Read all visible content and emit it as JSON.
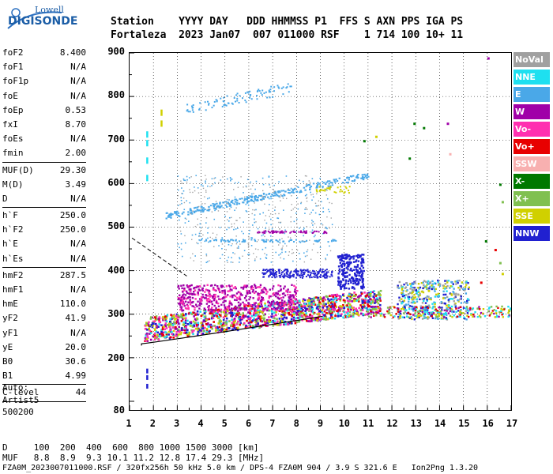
{
  "logo": {
    "top": "Lowell",
    "main": "DIGISONDE"
  },
  "header": {
    "line1": "Station    YYYY DAY   DDD HHMMSS P1  FFS S AXN PPS IGA PS",
    "line2": "Fortaleza  2023 Jan07  007 011000 RSF    1 714 100 10+ 11"
  },
  "params": [
    [
      {
        "k": "foF2",
        "v": "8.400"
      },
      {
        "k": "foF1",
        "v": "N/A"
      },
      {
        "k": "foF1p",
        "v": "N/A"
      },
      {
        "k": "foE",
        "v": "N/A"
      },
      {
        "k": "foEp",
        "v": "0.53"
      },
      {
        "k": "fxI",
        "v": "8.70"
      },
      {
        "k": "foEs",
        "v": "N/A"
      },
      {
        "k": "fmin",
        "v": "2.00"
      }
    ],
    [
      {
        "k": "MUF(D)",
        "v": "29.30"
      },
      {
        "k": "M(D)",
        "v": "3.49"
      },
      {
        "k": "D",
        "v": "N/A"
      }
    ],
    [
      {
        "k": "h`F",
        "v": "250.0"
      },
      {
        "k": "h`F2",
        "v": "250.0"
      },
      {
        "k": "h`E",
        "v": "N/A"
      },
      {
        "k": "h`Es",
        "v": "N/A"
      }
    ],
    [
      {
        "k": "hmF2",
        "v": "287.5"
      },
      {
        "k": "hmF1",
        "v": "N/A"
      },
      {
        "k": "hmE",
        "v": "110.0"
      },
      {
        "k": "yF2",
        "v": "41.9"
      },
      {
        "k": "yF1",
        "v": "N/A"
      },
      {
        "k": "yE",
        "v": "20.0"
      },
      {
        "k": "B0",
        "v": "30.6"
      },
      {
        "k": "B1",
        "v": "4.99"
      }
    ],
    [
      {
        "k": "C-level",
        "v": "44"
      }
    ]
  ],
  "auto": {
    "l1": "Auto:",
    "l2": "Artist5",
    "l3": "500200"
  },
  "legend": [
    {
      "label": "NoVal",
      "color": "#a0a0a0"
    },
    {
      "label": "NNE",
      "color": "#1ee0f0"
    },
    {
      "label": "E",
      "color": "#4aa8e8"
    },
    {
      "label": "W",
      "color": "#a000a8"
    },
    {
      "label": "Vo-",
      "color": "#ff30b0"
    },
    {
      "label": "Vo+",
      "color": "#e80000"
    },
    {
      "label": "SSW",
      "color": "#f8b0b0"
    },
    {
      "label": "X-",
      "color": "#007800"
    },
    {
      "label": "X+",
      "color": "#80c050"
    },
    {
      "label": "SSE",
      "color": "#d0d000"
    },
    {
      "label": "NNW",
      "color": "#2020d0"
    }
  ],
  "chart_data": {
    "type": "scatter",
    "x_ticks": [
      "1",
      "2",
      "3",
      "4",
      "5",
      "6",
      "7",
      "8",
      "9",
      "10",
      "11",
      "12",
      "13",
      "14",
      "15",
      "16",
      "17"
    ],
    "y_ticks": [
      "80",
      "200",
      "300",
      "400",
      "500",
      "600",
      "700",
      "800",
      "900"
    ],
    "xlim": [
      1,
      17
    ],
    "ylim": [
      80,
      900
    ]
  },
  "footer": {
    "d_line": "D     100  200  400  600  800 1000 1500 3000 [km]",
    "muf_line": "MUF   8.8  8.9  9.3 10.1 11.2 12.8 17.4 29.3 [MHz]",
    "info_line": "FZA0M_2023007011000.RSF / 320fx256h 50 kHz 5.0 km / DPS-4 FZA0M 904 / 3.9 S 321.6 E   Ion2Png 1.3.20"
  }
}
